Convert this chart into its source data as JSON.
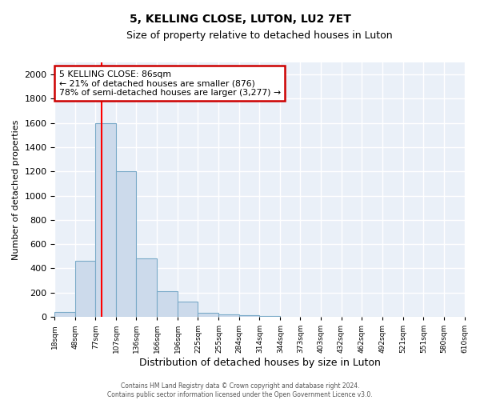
{
  "title": "5, KELLING CLOSE, LUTON, LU2 7ET",
  "subtitle": "Size of property relative to detached houses in Luton",
  "xlabel": "Distribution of detached houses by size in Luton",
  "ylabel": "Number of detached properties",
  "bar_color": "#ccdaeb",
  "bar_edge_color": "#7aaac8",
  "bg_color": "#eaf0f8",
  "red_line_x": 86,
  "bin_edges": [
    18,
    48,
    77,
    107,
    136,
    166,
    196,
    225,
    255,
    284,
    314,
    344,
    373,
    403,
    432,
    462,
    492,
    521,
    551,
    580,
    610
  ],
  "bar_heights": [
    40,
    460,
    1600,
    1200,
    480,
    210,
    125,
    35,
    20,
    15,
    10,
    0,
    0,
    0,
    0,
    0,
    0,
    0,
    0,
    0
  ],
  "ylim": [
    0,
    2100
  ],
  "yticks": [
    0,
    200,
    400,
    600,
    800,
    1000,
    1200,
    1400,
    1600,
    1800,
    2000
  ],
  "annotation_title": "5 KELLING CLOSE: 86sqm",
  "annotation_line1": "← 21% of detached houses are smaller (876)",
  "annotation_line2": "78% of semi-detached houses are larger (3,277) →",
  "annotation_box_color": "#ffffff",
  "annotation_box_edge": "#cc0000",
  "footer_line1": "Contains HM Land Registry data © Crown copyright and database right 2024.",
  "footer_line2": "Contains public sector information licensed under the Open Government Licence v3.0.",
  "tick_labels": [
    "18sqm",
    "48sqm",
    "77sqm",
    "107sqm",
    "136sqm",
    "166sqm",
    "196sqm",
    "225sqm",
    "255sqm",
    "284sqm",
    "314sqm",
    "344sqm",
    "373sqm",
    "403sqm",
    "432sqm",
    "462sqm",
    "492sqm",
    "521sqm",
    "551sqm",
    "580sqm",
    "610sqm"
  ]
}
